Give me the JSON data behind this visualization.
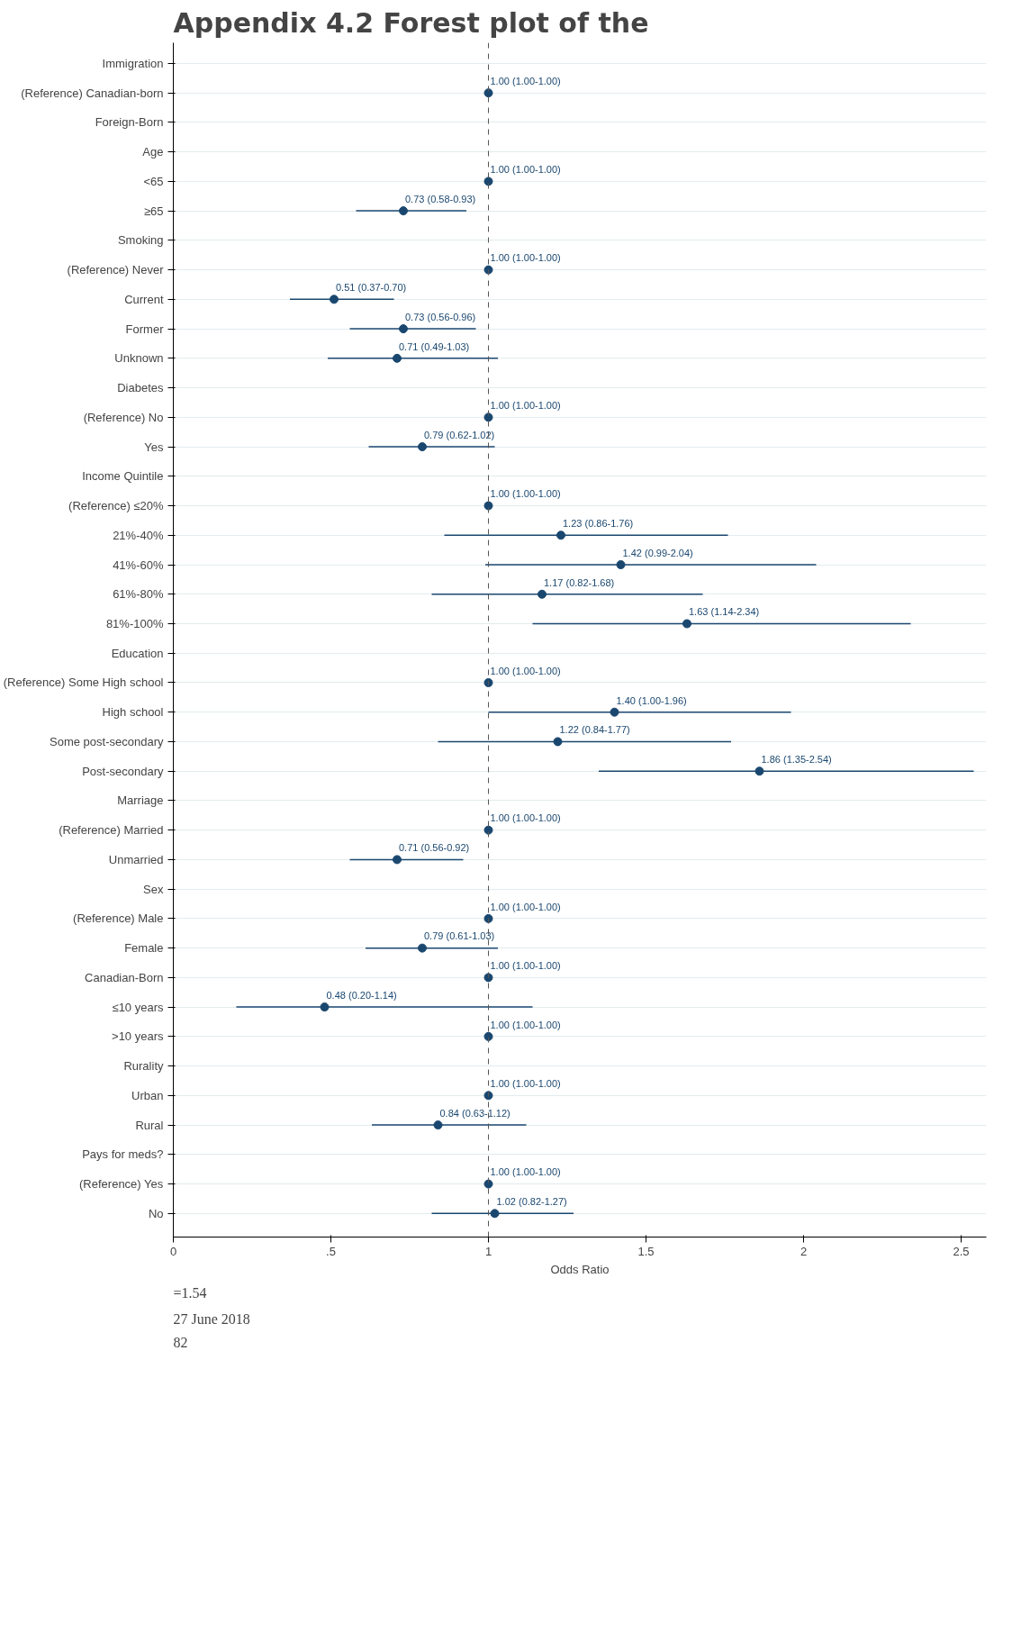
{
  "chart_data": {
    "type": "scatter",
    "title": "Appendix 4.2 Forest plot of the",
    "xlabel": "Odds Ratio",
    "categories": [
      "Immigration",
      "(Reference) Canadian-born",
      "Foreign-Born",
      "Age",
      "<65",
      "≥65",
      "Smoking",
      "(Reference) Never",
      "Current",
      "Former",
      "Unknown",
      "Diabetes",
      "(Reference) No",
      "Yes",
      "Income Quintile",
      "(Reference) ≤20%",
      "21%-40%",
      "41%-60%",
      "61%-80%",
      "81%-100%",
      "Education",
      "(Reference) Some High school",
      "High school",
      "Some post-secondary",
      "Post-secondary",
      "Marriage",
      "(Reference) Married",
      "Unmarried",
      "Sex",
      "(Reference) Male",
      "Female",
      "Canadian-Born",
      "≤10 years",
      ">10 years",
      "Rurality",
      "Urban",
      "Rural",
      "Pays for meds?",
      "(Reference) Yes",
      "No"
    ],
    "orientation": "horizontal",
    "values": [
      null,
      1.0,
      null,
      null,
      1.0,
      0.73,
      null,
      1.0,
      0.51,
      0.73,
      0.71,
      null,
      1.0,
      0.79,
      null,
      1.0,
      1.23,
      1.42,
      1.17,
      1.63,
      null,
      1.0,
      1.4,
      1.22,
      1.86,
      null,
      1.0,
      0.71,
      null,
      1.0,
      0.79,
      1.0,
      0.48,
      1.0,
      null,
      1.0,
      0.84,
      null,
      1.0,
      1.02
    ],
    "errors": [
      null,
      [
        1.0,
        1.0
      ],
      null,
      null,
      [
        1.0,
        1.0
      ],
      [
        0.58,
        0.93
      ],
      null,
      [
        1.0,
        1.0
      ],
      [
        0.37,
        0.7
      ],
      [
        0.56,
        0.96
      ],
      [
        0.49,
        1.03
      ],
      null,
      [
        1.0,
        1.0
      ],
      [
        0.62,
        1.02
      ],
      null,
      [
        1.0,
        1.0
      ],
      [
        0.86,
        1.76
      ],
      [
        0.99,
        2.04
      ],
      [
        0.82,
        1.68
      ],
      [
        1.14,
        2.34
      ],
      null,
      [
        1.0,
        1.0
      ],
      [
        1.0,
        1.96
      ],
      [
        0.84,
        1.77
      ],
      [
        1.35,
        2.54
      ],
      null,
      [
        1.0,
        1.0
      ],
      [
        0.56,
        0.92
      ],
      null,
      [
        1.0,
        1.0
      ],
      [
        0.61,
        1.03
      ],
      [
        1.0,
        1.0
      ],
      [
        0.2,
        1.14
      ],
      [
        1.0,
        1.0
      ],
      null,
      [
        1.0,
        1.0
      ],
      [
        0.63,
        1.12
      ],
      null,
      [
        1.0,
        1.0
      ],
      [
        0.82,
        1.27
      ]
    ],
    "value_labels": [
      null,
      "1.00 (1.00-1.00)",
      null,
      null,
      "1.00 (1.00-1.00)",
      "0.73 (0.58-0.93)",
      null,
      "1.00 (1.00-1.00)",
      "0.51 (0.37-0.70)",
      "0.73 (0.56-0.96)",
      "0.71 (0.49-1.03)",
      null,
      "1.00 (1.00-1.00)",
      "0.79 (0.62-1.02)",
      null,
      "1.00 (1.00-1.00)",
      "1.23 (0.86-1.76)",
      "1.42 (0.99-2.04)",
      "1.17 (0.82-1.68)",
      "1.63 (1.14-2.34)",
      null,
      "1.00 (1.00-1.00)",
      "1.40 (1.00-1.96)",
      "1.22 (0.84-1.77)",
      "1.86 (1.35-2.54)",
      null,
      "1.00 (1.00-1.00)",
      "0.71 (0.56-0.92)",
      null,
      "1.00 (1.00-1.00)",
      "0.79 (0.61-1.03)",
      "1.00 (1.00-1.00)",
      "0.48 (0.20-1.14)",
      "1.00 (1.00-1.00)",
      null,
      "1.00 (1.00-1.00)",
      "0.84 (0.63-1.12)",
      null,
      "1.00 (1.00-1.00)",
      "1.02 (0.82-1.27)"
    ],
    "color": "#1a476f",
    "marker": "circle",
    "xlim": [
      0,
      2.58
    ],
    "xticks": [
      0,
      {
        "value": 0.5,
        "label": ".5"
      },
      1,
      1.5,
      2,
      2.5
    ],
    "ref_lines": [
      {
        "axis": "x",
        "value": 1,
        "label": null,
        "color": "#555555",
        "line_style": "dashed"
      }
    ],
    "grid": "y",
    "annotations": [
      "=1.54",
      "27 June 2018",
      "82"
    ]
  }
}
